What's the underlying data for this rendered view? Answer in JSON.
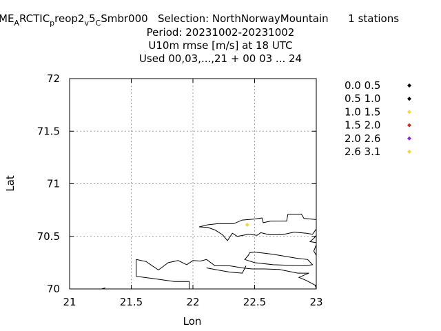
{
  "header": {
    "title_parts": [
      {
        "text": "ME",
        "sub": false
      },
      {
        "text": "A",
        "sub": true
      },
      {
        "text": "RCTIC",
        "sub": false
      },
      {
        "text": "p",
        "sub": true
      },
      {
        "text": "reop2",
        "sub": false
      },
      {
        "text": "v",
        "sub": true
      },
      {
        "text": "5",
        "sub": false
      },
      {
        "text": "C",
        "sub": true
      },
      {
        "text": "Smbr000   Selection: NorthNorwayMountain      1 stations",
        "sub": false
      }
    ],
    "period": "Period: 20231002-20231002",
    "variable": "U10m rmse [m/s] at  18 UTC",
    "used": "Used  00,03,...,21  + 00 03 ... 24"
  },
  "chart_data": {
    "type": "scatter",
    "xlabel": "Lon",
    "ylabel": "Lat",
    "xlim": [
      21,
      23
    ],
    "ylim": [
      70,
      72
    ],
    "xticks": [
      21,
      21.5,
      22,
      22.5,
      23
    ],
    "xtick_labels": [
      "21",
      "21.5",
      "22",
      "22.5",
      "23"
    ],
    "yticks": [
      70,
      70.5,
      71,
      71.5,
      72
    ],
    "ytick_labels": [
      "70",
      "70.5",
      "71",
      "71.5",
      "72"
    ],
    "grid": true,
    "legend_position": "right",
    "legend": [
      {
        "label": "0.0 0.5",
        "color": "#000000"
      },
      {
        "label": "0.5 1.0",
        "color": "#000000"
      },
      {
        "label": "1.0 1.5",
        "color": "#f0d840"
      },
      {
        "label": "1.5 2.0",
        "color": "#c83020"
      },
      {
        "label": "2.0 2.6",
        "color": "#8a28d0"
      },
      {
        "label": "2.6 3.1",
        "color": "#f0d840"
      }
    ],
    "points": [
      {
        "lon": 22.44,
        "lat": 70.61,
        "color": "#f0d840"
      }
    ],
    "coastlines": [
      [
        [
          22.05,
          70.59
        ],
        [
          22.12,
          70.61
        ],
        [
          22.2,
          70.62
        ],
        [
          22.33,
          70.62
        ],
        [
          22.4,
          70.655
        ],
        [
          22.5,
          70.665
        ],
        [
          22.56,
          70.675
        ],
        [
          22.57,
          70.63
        ],
        [
          22.63,
          70.645
        ],
        [
          22.76,
          70.645
        ],
        [
          22.77,
          70.71
        ],
        [
          22.88,
          70.71
        ],
        [
          22.9,
          70.67
        ],
        [
          23.0,
          70.66
        ]
      ],
      [
        [
          22.05,
          70.59
        ],
        [
          22.12,
          70.585
        ],
        [
          22.18,
          70.56
        ],
        [
          22.24,
          70.515
        ],
        [
          22.28,
          70.46
        ],
        [
          22.32,
          70.53
        ],
        [
          22.36,
          70.5
        ],
        [
          22.45,
          70.52
        ],
        [
          22.52,
          70.51
        ],
        [
          22.55,
          70.535
        ],
        [
          22.62,
          70.515
        ],
        [
          22.72,
          70.515
        ],
        [
          22.82,
          70.54
        ],
        [
          22.92,
          70.53
        ],
        [
          22.97,
          70.52
        ],
        [
          23.0,
          70.57
        ]
      ],
      [
        [
          23.0,
          70.51
        ],
        [
          22.98,
          70.48
        ],
        [
          22.95,
          70.45
        ],
        [
          23.0,
          70.44
        ]
      ],
      [
        [
          23.0,
          70.42
        ],
        [
          22.98,
          70.36
        ],
        [
          23.0,
          70.32
        ]
      ],
      [
        [
          22.46,
          70.345
        ],
        [
          22.5,
          70.35
        ],
        [
          22.65,
          70.33
        ],
        [
          22.85,
          70.29
        ],
        [
          22.93,
          70.28
        ],
        [
          22.97,
          70.23
        ],
        [
          22.9,
          70.22
        ],
        [
          22.65,
          70.23
        ],
        [
          22.5,
          70.25
        ],
        [
          22.42,
          70.28
        ],
        [
          22.45,
          70.32
        ],
        [
          22.46,
          70.345
        ]
      ],
      [
        [
          21.54,
          70.28
        ],
        [
          21.62,
          70.26
        ],
        [
          21.72,
          70.18
        ],
        [
          21.8,
          70.25
        ],
        [
          21.88,
          70.27
        ],
        [
          21.95,
          70.23
        ],
        [
          22.0,
          70.27
        ],
        [
          22.06,
          70.265
        ],
        [
          22.11,
          70.28
        ],
        [
          22.18,
          70.22
        ],
        [
          22.3,
          70.22
        ],
        [
          22.4,
          70.2
        ],
        [
          22.48,
          70.19
        ],
        [
          22.58,
          70.19
        ],
        [
          22.7,
          70.185
        ],
        [
          22.85,
          70.15
        ],
        [
          22.94,
          70.15
        ],
        [
          22.86,
          70.11
        ],
        [
          22.92,
          70.08
        ],
        [
          23.0,
          70.03
        ]
      ],
      [
        [
          21.54,
          70.28
        ],
        [
          21.54,
          70.12
        ],
        [
          21.67,
          70.1
        ],
        [
          21.85,
          70.07
        ],
        [
          21.97,
          70.07
        ],
        [
          21.97,
          70.0
        ]
      ],
      [
        [
          22.43,
          70.22
        ],
        [
          22.4,
          70.15
        ],
        [
          22.3,
          70.16
        ],
        [
          22.2,
          70.18
        ],
        [
          22.11,
          70.2
        ]
      ],
      [
        [
          21.26,
          70.0
        ],
        [
          21.29,
          70.01
        ]
      ],
      [
        [
          23.0,
          70.0
        ],
        [
          22.99,
          70.04
        ]
      ]
    ]
  }
}
